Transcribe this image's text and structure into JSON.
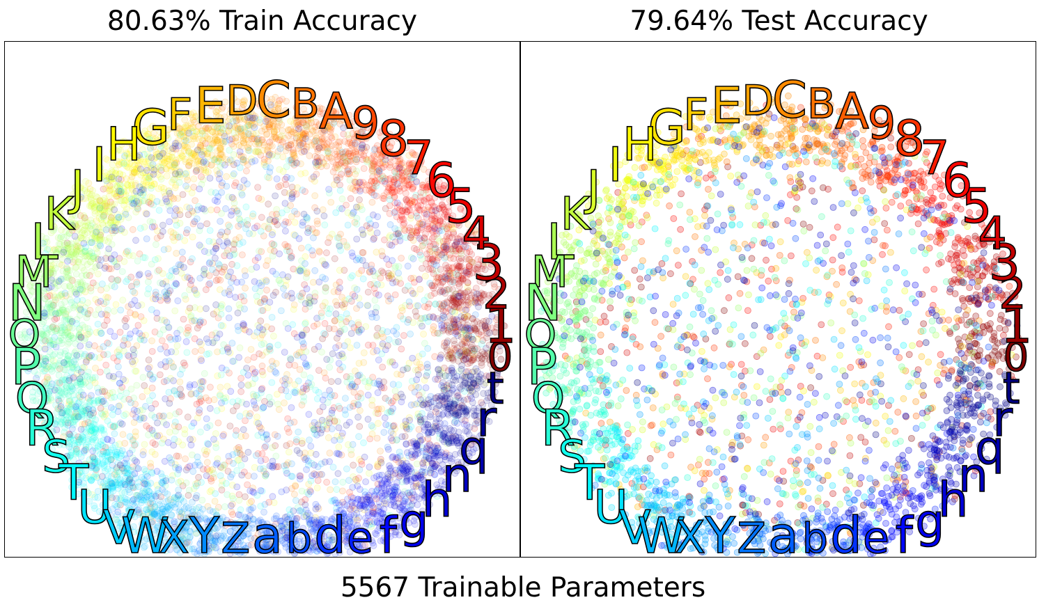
{
  "figure": {
    "footer": "5567 Trainable Parameters"
  },
  "chart_data": [
    {
      "type": "scatter",
      "title": "80.63% Train Accuracy",
      "xlabel": "",
      "ylabel": "",
      "grid": false,
      "axes_ticks": false,
      "layout": "circular class embedding",
      "class_labels": [
        "0",
        "1",
        "2",
        "3",
        "4",
        "5",
        "6",
        "7",
        "8",
        "9",
        "A",
        "B",
        "C",
        "D",
        "E",
        "F",
        "G",
        "H",
        "I",
        "J",
        "K",
        "L",
        "M",
        "N",
        "O",
        "P",
        "Q",
        "R",
        "S",
        "T",
        "U",
        "V",
        "W",
        "X",
        "Y",
        "Z",
        "a",
        "b",
        "d",
        "e",
        "f",
        "g",
        "h",
        "n",
        "q",
        "r",
        "t"
      ],
      "colormap": "jet",
      "point_density": "dense",
      "point_alpha": 0.12
    },
    {
      "type": "scatter",
      "title": "79.64% Test Accuracy",
      "xlabel": "",
      "ylabel": "",
      "grid": false,
      "axes_ticks": false,
      "layout": "circular class embedding",
      "class_labels": [
        "0",
        "1",
        "2",
        "3",
        "4",
        "5",
        "6",
        "7",
        "8",
        "9",
        "A",
        "B",
        "C",
        "D",
        "E",
        "F",
        "G",
        "H",
        "I",
        "J",
        "K",
        "L",
        "M",
        "N",
        "O",
        "P",
        "Q",
        "R",
        "S",
        "T",
        "U",
        "V",
        "W",
        "X",
        "Y",
        "Z",
        "a",
        "b",
        "d",
        "e",
        "f",
        "g",
        "h",
        "n",
        "q",
        "r",
        "t"
      ],
      "colormap": "jet",
      "point_density": "sparse",
      "point_alpha": 0.25
    }
  ]
}
